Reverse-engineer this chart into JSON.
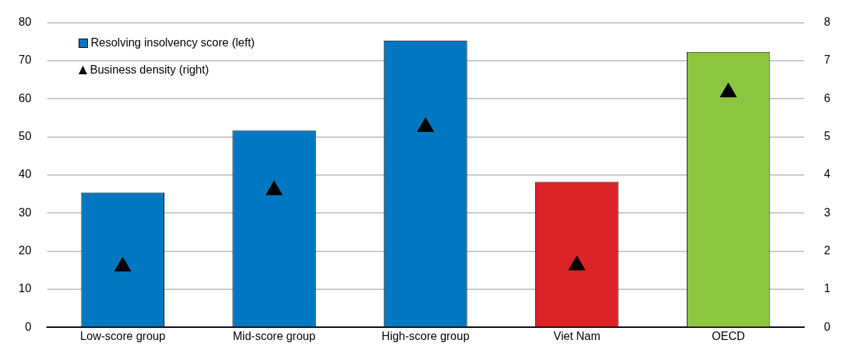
{
  "chart_data": {
    "type": "bar",
    "categories": [
      "Low-score group",
      "Mid-score group",
      "High-score group",
      "Viet Nam",
      "OECD"
    ],
    "series": [
      {
        "name": "Resolving insolvency score (left)",
        "color": "#0078c1",
        "colors": [
          "#0078c1",
          "#0078c1",
          "#0078c1",
          "#dc2328",
          "#8cc641"
        ],
        "values": [
          35.4,
          51.7,
          75.3,
          38.2,
          72.3
        ]
      },
      {
        "name": "Business density (right)",
        "type": "scatter",
        "axis": "y2",
        "color": "#000000",
        "marker": "triangle",
        "x": [
          "Low-score group",
          "Mid-score group",
          "High-score group",
          "Viet Nam",
          "OECD"
        ],
        "values": [
          1.6,
          3.6,
          5.26,
          1.63,
          6.17
        ]
      }
    ],
    "ylim": [
      0,
      80
    ],
    "yticks": [
      0,
      10,
      20,
      30,
      40,
      50,
      60,
      70,
      80
    ],
    "y2lim": [
      0,
      8
    ],
    "y2ticks": [
      0,
      1,
      2,
      3,
      4,
      5,
      6,
      7,
      8
    ],
    "grid": "y",
    "legend": "top left"
  }
}
